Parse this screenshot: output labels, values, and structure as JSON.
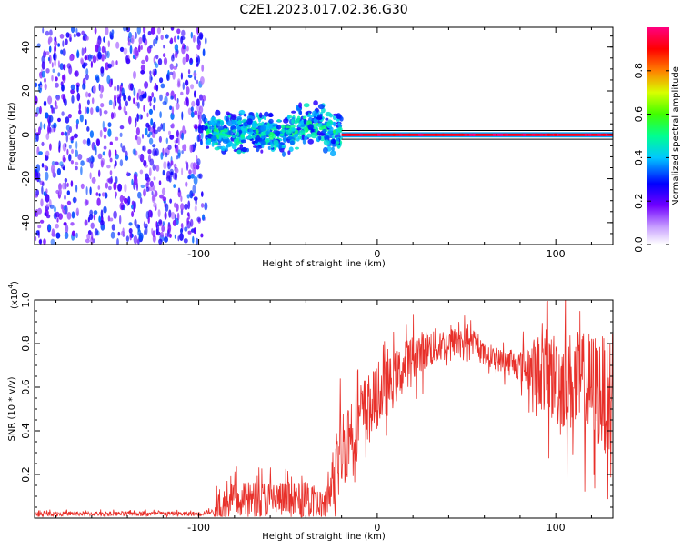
{
  "figure": {
    "title": "C2E1.2023.017.02.36.G30"
  },
  "chart_data": [
    {
      "type": "heatmap",
      "title": "C2E1.2023.017.02.36.G30",
      "xlabel": "Height of straight line (km)",
      "ylabel": "Frequency (Hz)",
      "xlim": [
        -192,
        132
      ],
      "ylim": [
        -50,
        49
      ],
      "xticks": [
        -100,
        0,
        100
      ],
      "xtick_labels": [
        "-100",
        "0",
        "100"
      ],
      "yticks": [
        -40,
        -20,
        0,
        20,
        40
      ],
      "ytick_labels": [
        "-40",
        "-20",
        "0",
        "20",
        "40"
      ],
      "colorbar": {
        "label": "Normalized spectral amplitude",
        "range": [
          0,
          1
        ],
        "ticks": [
          0.0,
          0.2,
          0.4,
          0.6,
          0.8
        ],
        "tick_labels": [
          "0.0",
          "0.2",
          "0.4",
          "0.6",
          "0.8"
        ]
      },
      "features": {
        "data_start_x": -96,
        "noise_band": {
          "x": [
            -192,
            -96
          ],
          "freq_spread": 49,
          "amplitude_range": [
            0.1,
            0.35
          ]
        },
        "broad_signal": {
          "x": [
            -96,
            -20
          ],
          "freq_center": 1,
          "freq_width": 10,
          "amplitude_range": [
            0.3,
            0.55
          ]
        },
        "narrow_tone": {
          "x": [
            -20,
            132
          ],
          "freq_center": 0,
          "freq_width": 2,
          "amplitude_range": [
            0.9,
            1.0
          ]
        }
      }
    },
    {
      "type": "line",
      "xlabel": "Height of straight line (km)",
      "ylabel": "SNR (10 * v/v)",
      "yscale_label": "(x10",
      "yscale_exp": "4",
      "xlim": [
        -192,
        132
      ],
      "ylim": [
        0,
        1.0
      ],
      "xticks": [
        -100,
        0,
        100
      ],
      "xtick_labels": [
        "-100",
        "0",
        "100"
      ],
      "yticks": [
        0.2,
        0.4,
        0.6,
        0.8,
        1.0
      ],
      "ytick_labels": [
        "0.2",
        "0.4",
        "0.6",
        "0.8",
        "1.0"
      ],
      "series": [
        {
          "color": "#e8302a",
          "trend_x": [
            -192,
            -100,
            -92,
            -80,
            -60,
            -40,
            -30,
            -26,
            -20,
            -12,
            -4,
            4,
            12,
            20,
            30,
            40,
            50,
            56,
            62,
            70,
            80,
            90,
            100,
            110,
            120,
            132
          ],
          "trend_y": [
            0.02,
            0.02,
            0.03,
            0.08,
            0.09,
            0.08,
            0.05,
            0.14,
            0.32,
            0.44,
            0.52,
            0.58,
            0.66,
            0.74,
            0.78,
            0.8,
            0.82,
            0.79,
            0.74,
            0.72,
            0.7,
            0.68,
            0.64,
            0.62,
            0.6,
            0.55
          ],
          "noise_x": [
            -192,
            -92,
            -90,
            -26,
            -24,
            0,
            60,
            80,
            95,
            132
          ],
          "noise_y": [
            0.015,
            0.015,
            0.12,
            0.12,
            0.3,
            0.2,
            0.06,
            0.1,
            0.3,
            0.4
          ]
        }
      ]
    }
  ]
}
